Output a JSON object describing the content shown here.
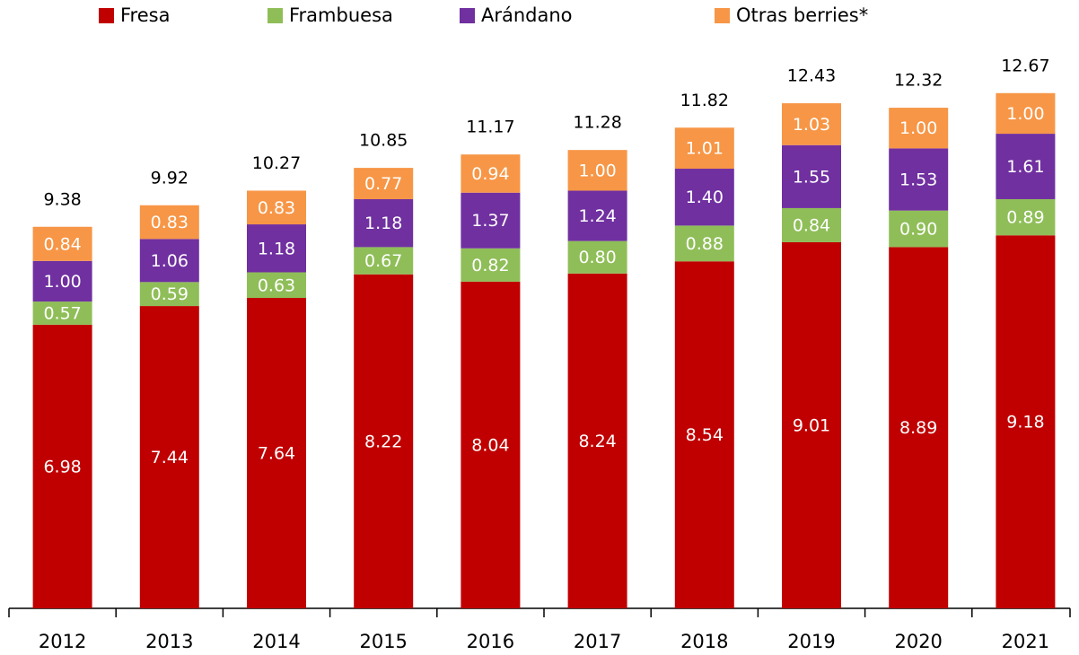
{
  "chart_data": {
    "type": "stacked_bar",
    "categories": [
      "2012",
      "2013",
      "2014",
      "2015",
      "2016",
      "2017",
      "2018",
      "2019",
      "2020",
      "2021"
    ],
    "series": [
      {
        "name": "Fresa",
        "color": "#c00000",
        "values": [
          6.98,
          7.44,
          7.64,
          8.22,
          8.04,
          8.24,
          8.54,
          9.01,
          8.89,
          9.18
        ],
        "value_labels": [
          "6.98",
          "7.44",
          "7.64",
          "8.22",
          "8.04",
          "8.24",
          "8.54",
          "9.01",
          "8.89",
          "9.18"
        ]
      },
      {
        "name": "Frambuesa",
        "color": "#8fbe58",
        "values": [
          0.57,
          0.59,
          0.63,
          0.67,
          0.82,
          0.8,
          0.88,
          0.84,
          0.9,
          0.89
        ],
        "value_labels": [
          "0.57",
          "0.59",
          "0.63",
          "0.67",
          "0.82",
          "0.80",
          "0.88",
          "0.84",
          "0.90",
          "0.89"
        ]
      },
      {
        "name": "Arándano",
        "color": "#7030a0",
        "values": [
          1,
          1.06,
          1.18,
          1.18,
          1.37,
          1.24,
          1.4,
          1.55,
          1.53,
          1.61
        ],
        "value_labels": [
          "1.00",
          "1.06",
          "1.18",
          "1.18",
          "1.37",
          "1.24",
          "1.40",
          "1.55",
          "1.53",
          "1.61"
        ]
      },
      {
        "name": "Otras berries*",
        "color": "#f79646",
        "values": [
          0.84,
          0.83,
          0.83,
          0.77,
          0.94,
          1,
          1.01,
          1.03,
          1,
          1
        ],
        "value_labels": [
          "0.84",
          "0.83",
          "0.83",
          "0.77",
          "0.94",
          "1.00",
          "1.01",
          "1.03",
          "1.00",
          "1.00"
        ]
      }
    ],
    "totals": [
      9.38,
      9.92,
      10.27,
      10.85,
      11.17,
      11.28,
      11.82,
      12.43,
      12.32,
      12.67
    ],
    "ylim": [
      0,
      14
    ],
    "legend": "top"
  }
}
